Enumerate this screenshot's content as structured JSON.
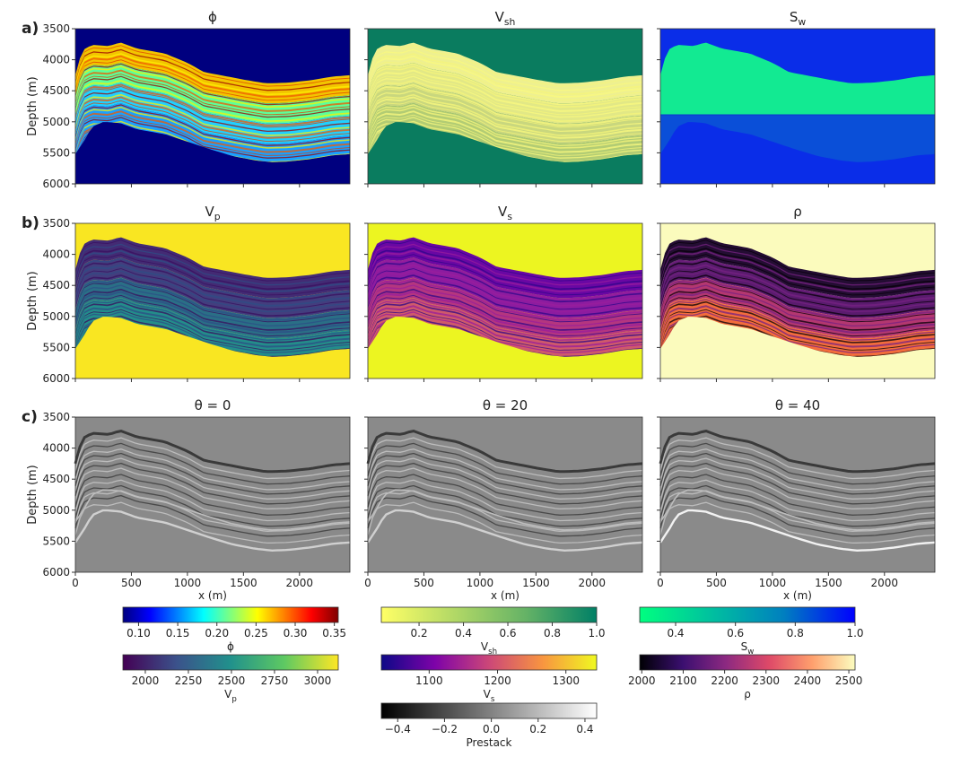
{
  "figure": {
    "row_labels": [
      "a)",
      "b)",
      "c)"
    ],
    "depth_label": "Depth (m)",
    "x_label": "x (m)",
    "depth_ticks": [
      "3500",
      "4000",
      "4500",
      "5000",
      "5500",
      "6000"
    ],
    "x_ticks": [
      "0",
      "500",
      "1000",
      "1500",
      "2000"
    ]
  },
  "chart_data": [
    {
      "type": "heatmap",
      "panel": "phi",
      "title": "ϕ",
      "xlim": [
        0,
        2450
      ],
      "ylim": [
        6000,
        3500
      ],
      "xlabel": "",
      "ylabel": "Depth (m)",
      "colormap": "jet"
    },
    {
      "type": "heatmap",
      "panel": "vsh",
      "title": "V",
      "title_sub": "sh",
      "xlim": [
        0,
        2450
      ],
      "ylim": [
        6000,
        3500
      ],
      "colormap": "summer_r"
    },
    {
      "type": "heatmap",
      "panel": "sw",
      "title": "S",
      "title_sub": "w",
      "xlim": [
        0,
        2450
      ],
      "ylim": [
        6000,
        3500
      ],
      "colormap": "winter_r"
    },
    {
      "type": "heatmap",
      "panel": "vp",
      "title": "V",
      "title_sub": "p",
      "xlim": [
        0,
        2450
      ],
      "ylim": [
        6000,
        3500
      ],
      "ylabel": "Depth (m)",
      "colormap": "viridis"
    },
    {
      "type": "heatmap",
      "panel": "vs",
      "title": "V",
      "title_sub": "s",
      "xlim": [
        0,
        2450
      ],
      "ylim": [
        6000,
        3500
      ],
      "colormap": "plasma"
    },
    {
      "type": "heatmap",
      "panel": "rho",
      "title": "ρ",
      "xlim": [
        0,
        2450
      ],
      "ylim": [
        6000,
        3500
      ],
      "colormap": "magma"
    },
    {
      "type": "heatmap",
      "panel": "theta0",
      "title": "θ = 0",
      "xlim": [
        0,
        2450
      ],
      "ylim": [
        6000,
        3500
      ],
      "xlabel": "x (m)",
      "ylabel": "Depth (m)",
      "colormap": "gray"
    },
    {
      "type": "heatmap",
      "panel": "theta20",
      "title": "θ = 20",
      "xlim": [
        0,
        2450
      ],
      "ylim": [
        6000,
        3500
      ],
      "xlabel": "x (m)",
      "colormap": "gray"
    },
    {
      "type": "heatmap",
      "panel": "theta40",
      "title": "θ = 40",
      "xlim": [
        0,
        2450
      ],
      "ylim": [
        6000,
        3500
      ],
      "xlabel": "x (m)",
      "colormap": "gray"
    }
  ],
  "top_boundary": [
    [
      0,
      4250
    ],
    [
      60,
      3850
    ],
    [
      150,
      3760
    ],
    [
      300,
      3780
    ],
    [
      400,
      3720
    ],
    [
      550,
      3820
    ],
    [
      800,
      3900
    ],
    [
      1000,
      4050
    ],
    [
      1150,
      4200
    ],
    [
      1300,
      4250
    ],
    [
      1500,
      4320
    ],
    [
      1700,
      4380
    ],
    [
      1900,
      4370
    ],
    [
      2100,
      4330
    ],
    [
      2300,
      4270
    ],
    [
      2450,
      4250
    ]
  ],
  "bottom_boundary": [
    [
      0,
      5520
    ],
    [
      80,
      5300
    ],
    [
      150,
      5080
    ],
    [
      250,
      5000
    ],
    [
      400,
      5020
    ],
    [
      550,
      5120
    ],
    [
      800,
      5200
    ],
    [
      1000,
      5320
    ],
    [
      1200,
      5440
    ],
    [
      1400,
      5550
    ],
    [
      1600,
      5620
    ],
    [
      1750,
      5650
    ],
    [
      1900,
      5640
    ],
    [
      2100,
      5600
    ],
    [
      2300,
      5540
    ],
    [
      2450,
      5520
    ]
  ],
  "colorbars": [
    {
      "id": "phi",
      "label": "ϕ",
      "label_sub": "",
      "min": 0.08,
      "max": 0.355,
      "ticks": [
        "0.10",
        "0.15",
        "0.20",
        "0.25",
        "0.30",
        "0.35"
      ],
      "tick_values": [
        0.1,
        0.15,
        0.2,
        0.25,
        0.3,
        0.35
      ],
      "colors": [
        "#00007f",
        "#0000ff",
        "#007fff",
        "#00ffff",
        "#7fff7f",
        "#ffff00",
        "#ff7f00",
        "#ff0000",
        "#7f0000"
      ]
    },
    {
      "id": "vsh",
      "label": "V",
      "label_sub": "sh",
      "min": 0.03,
      "max": 1.0,
      "ticks": [
        "0.2",
        "0.4",
        "0.6",
        "0.8",
        "1.0"
      ],
      "tick_values": [
        0.2,
        0.4,
        0.6,
        0.8,
        1.0
      ],
      "colors": [
        "#ffff66",
        "#b3d966",
        "#66b366",
        "#008066"
      ]
    },
    {
      "id": "sw",
      "label": "S",
      "label_sub": "w",
      "min": 0.28,
      "max": 1.0,
      "ticks": [
        "0.4",
        "0.6",
        "0.8",
        "1.0"
      ],
      "tick_values": [
        0.4,
        0.6,
        0.8,
        1.0
      ],
      "colors": [
        "#00ff80",
        "#00c09f",
        "#0080bf",
        "#0000ff"
      ]
    },
    {
      "id": "vp",
      "label": "V",
      "label_sub": "p",
      "min": 1870,
      "max": 3120,
      "ticks": [
        "2000",
        "2250",
        "2500",
        "2750",
        "3000"
      ],
      "tick_values": [
        2000,
        2250,
        2500,
        2750,
        3000
      ],
      "colors": [
        "#440154",
        "#3b528b",
        "#21918c",
        "#5ec962",
        "#fde725"
      ]
    },
    {
      "id": "vs",
      "label": "V",
      "label_sub": "s",
      "min": 1030,
      "max": 1345,
      "ticks": [
        "1100",
        "1200",
        "1300"
      ],
      "tick_values": [
        1100,
        1200,
        1300
      ],
      "colors": [
        "#0d0887",
        "#7e03a8",
        "#cc4778",
        "#f89540",
        "#f0f921"
      ]
    },
    {
      "id": "rho",
      "label": "ρ",
      "label_sub": "",
      "min": 1995,
      "max": 2515,
      "ticks": [
        "2000",
        "2100",
        "2200",
        "2300",
        "2400",
        "2500"
      ],
      "tick_values": [
        2000,
        2100,
        2200,
        2300,
        2400,
        2500
      ],
      "colors": [
        "#000004",
        "#3b0f70",
        "#8c2981",
        "#de4968",
        "#fe9f6d",
        "#fcfdbf"
      ]
    },
    {
      "id": "prestack",
      "label": "Prestack",
      "label_sub": "",
      "min": -0.47,
      "max": 0.45,
      "ticks": [
        "−0.4",
        "−0.2",
        "0.0",
        "0.2",
        "0.4"
      ],
      "tick_values": [
        -0.4,
        -0.2,
        0.0,
        0.2,
        0.4
      ],
      "colors": [
        "#000000",
        "#ffffff"
      ]
    }
  ]
}
